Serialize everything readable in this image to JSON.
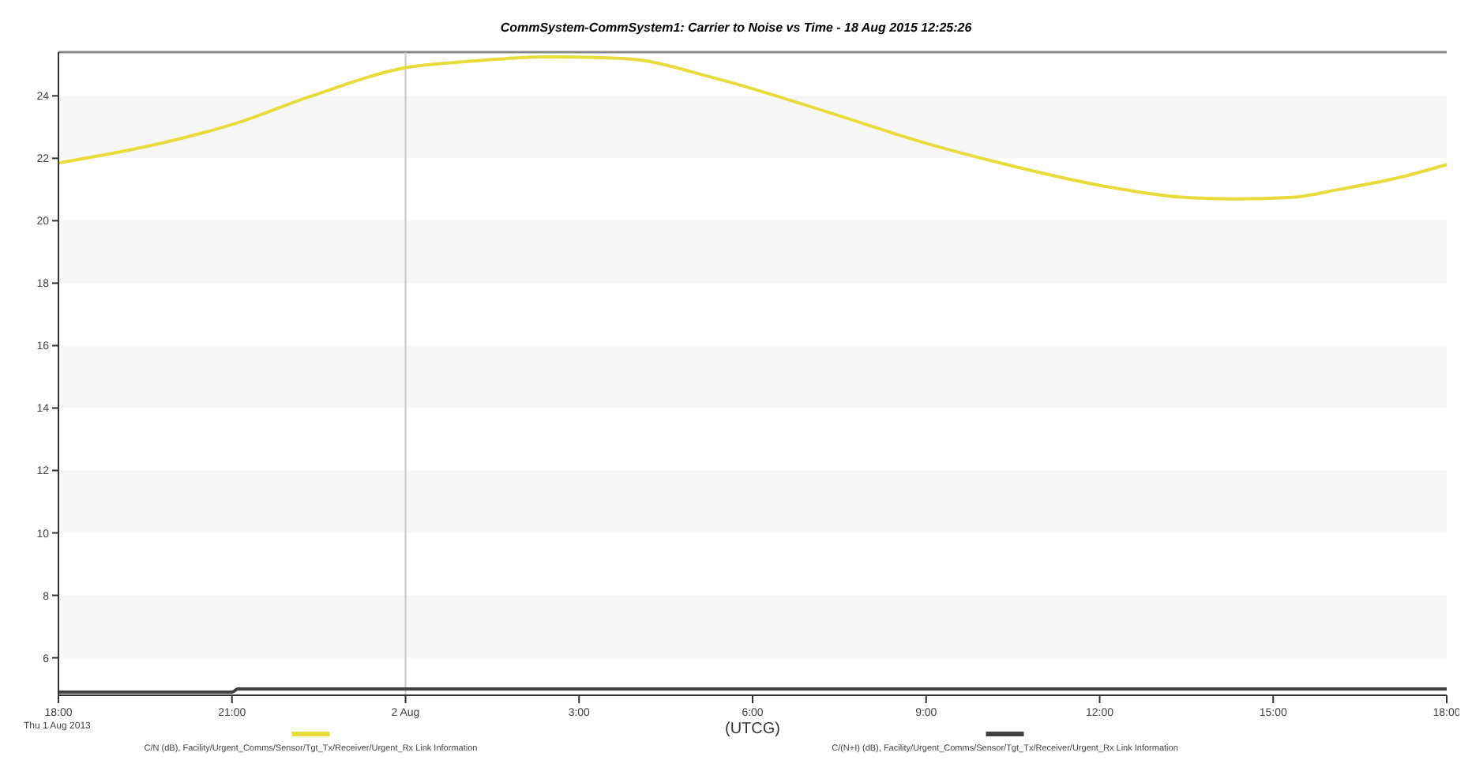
{
  "chart_data": {
    "type": "line",
    "title": "CommSystem-CommSystem1:  Carrier to Noise vs Time - 18 Aug 2015 12:25:26",
    "xlabel": "(UTCG)",
    "annotations": [
      "Thu 1 Aug 2013"
    ],
    "xlim": [
      "2013-08-01T18:00",
      "2013-08-02T18:00"
    ],
    "xticks": [
      {
        "value": "2013-08-01T18:00",
        "label": "18:00"
      },
      {
        "value": "2013-08-01T21:00",
        "label": "21:00"
      },
      {
        "value": "2013-08-02T00:00",
        "label": "2 Aug"
      },
      {
        "value": "2013-08-02T03:00",
        "label": "3:00"
      },
      {
        "value": "2013-08-02T06:00",
        "label": "6:00"
      },
      {
        "value": "2013-08-02T09:00",
        "label": "9:00"
      },
      {
        "value": "2013-08-02T12:00",
        "label": "12:00"
      },
      {
        "value": "2013-08-02T15:00",
        "label": "15:00"
      },
      {
        "value": "2013-08-02T18:00",
        "label": "18:00"
      }
    ],
    "ylim": [
      4.8,
      25.4
    ],
    "yticks": [
      6,
      8,
      10,
      12,
      14,
      16,
      18,
      20,
      22,
      24
    ],
    "legend": "bottom",
    "marker": "none",
    "line_style": "solid",
    "bands": [
      {
        "axis": "y",
        "from": 22,
        "to": 24,
        "color": "#f6f6f6"
      },
      {
        "axis": "y",
        "from": 18,
        "to": 20,
        "color": "#f6f6f6"
      },
      {
        "axis": "y",
        "from": 14,
        "to": 16,
        "color": "#f6f6f6"
      },
      {
        "axis": "y",
        "from": 10,
        "to": 12,
        "color": "#f6f6f6"
      },
      {
        "axis": "y",
        "from": 6,
        "to": 8,
        "color": "#f6f6f6"
      }
    ],
    "ref_lines": [
      {
        "axis": "x",
        "value": "2013-08-02T00:00",
        "color": "#c8c8c8"
      }
    ],
    "series": [
      {
        "name": "C/N (dB), Facility/Urgent_Comms/Sensor/Tgt_Tx/Receiver/Urgent_Rx Link Information",
        "color": "#e8dc3c",
        "x": [
          "2013-08-01T18:00",
          "2013-08-01T19:42",
          "2013-08-01T21:02",
          "2013-08-01T22:23",
          "2013-08-02T00:00",
          "2013-08-02T01:05",
          "2013-08-02T02:25",
          "2013-08-02T03:46",
          "2013-08-02T05:23",
          "2013-08-02T07:16",
          "2013-08-02T08:58",
          "2013-08-02T10:30",
          "2013-08-02T12:06",
          "2013-08-02T13:27",
          "2013-08-02T14:20",
          "2013-08-02T15:20",
          "2013-08-02T16:08",
          "2013-08-02T17:13",
          "2013-08-02T18:00"
        ],
        "values": [
          21.85,
          22.45,
          23.1,
          24.0,
          24.9,
          25.1,
          25.25,
          25.2,
          24.55,
          23.5,
          22.5,
          21.75,
          21.1,
          20.75,
          20.7,
          20.75,
          21.0,
          21.4,
          21.8
        ]
      },
      {
        "name": "C/(N+I) (dB), Facility/Urgent_Comms/Sensor/Tgt_Tx/Receiver/Urgent_Rx Link Information",
        "color": "#404040",
        "x": [
          "2013-08-01T18:00",
          "2013-08-01T21:00",
          "2013-08-01T21:06",
          "2013-08-02T18:00"
        ],
        "values": [
          4.9,
          4.9,
          5.0,
          5.0
        ]
      }
    ]
  }
}
